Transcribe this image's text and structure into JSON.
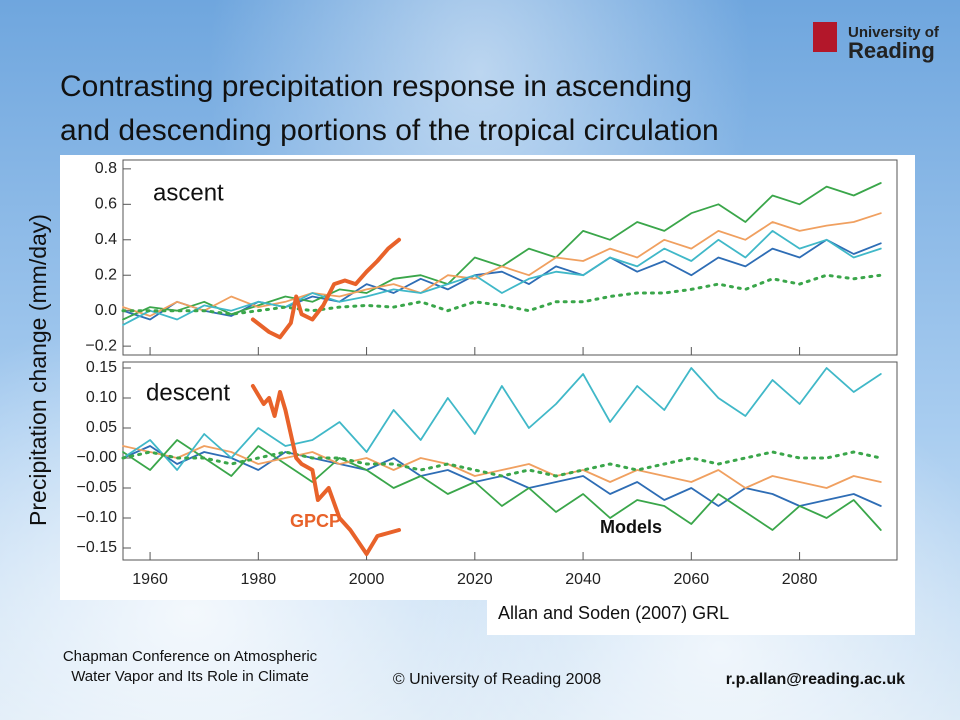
{
  "header": {
    "logo": [
      "University of",
      "Reading"
    ],
    "title": [
      "Contrasting precipitation response in ascending",
      "and descending portions of the tropical circulation"
    ]
  },
  "y_axis_label": "Precipitation change (mm/day)",
  "annotations": {
    "gpcp": "GPCP",
    "models": "Models"
  },
  "citation": "Allan and Soden (2007) GRL",
  "footer": {
    "conference": [
      "Chapman Conference on Atmospheric",
      "Water Vapor and Its Role in Climate"
    ],
    "copyright": "© University of Reading 2008",
    "email": "r.p.allan@reading.ac.uk"
  },
  "chart_data": [
    {
      "type": "line",
      "label": "ascent",
      "xlim": [
        1955,
        2098
      ],
      "xticks": [
        1960,
        1980,
        2000,
        2020,
        2040,
        2060,
        2080
      ],
      "ylim": [
        -0.25,
        0.85
      ],
      "yticks": [
        {
          "value": -0.2,
          "label": "−0.2"
        },
        {
          "value": 0,
          "label": "0.0"
        },
        {
          "value": 0.2,
          "label": "0.2"
        },
        {
          "value": 0.4,
          "label": "0.4"
        },
        {
          "value": 0.6,
          "label": "0.6"
        },
        {
          "value": 0.8,
          "label": "0.8"
        }
      ],
      "series": [
        {
          "color": "#2e6db5",
          "x": [
            1955,
            1960,
            1965,
            1970,
            1975,
            1980,
            1985,
            1990,
            1995,
            2000,
            2005,
            2010,
            2015,
            2020,
            2025,
            2030,
            2035,
            2040,
            2045,
            2050,
            2055,
            2060,
            2065,
            2070,
            2075,
            2080,
            2085,
            2090,
            2095
          ],
          "values": [
            0,
            -0.05,
            0.05,
            0,
            -0.03,
            0.05,
            0.02,
            0.08,
            0.05,
            0.15,
            0.1,
            0.18,
            0.12,
            0.2,
            0.22,
            0.15,
            0.25,
            0.2,
            0.3,
            0.22,
            0.28,
            0.2,
            0.3,
            0.25,
            0.35,
            0.3,
            0.4,
            0.32,
            0.38
          ]
        },
        {
          "color": "#3aa64a",
          "x": [
            1955,
            1960,
            1965,
            1970,
            1975,
            1980,
            1985,
            1990,
            1995,
            2000,
            2005,
            2010,
            2015,
            2020,
            2025,
            2030,
            2035,
            2040,
            2045,
            2050,
            2055,
            2060,
            2065,
            2070,
            2075,
            2080,
            2085,
            2090,
            2095
          ],
          "values": [
            -0.05,
            0.02,
            0,
            0.05,
            -0.02,
            0.03,
            0.08,
            0.05,
            0.12,
            0.1,
            0.18,
            0.2,
            0.15,
            0.3,
            0.25,
            0.35,
            0.3,
            0.45,
            0.4,
            0.5,
            0.45,
            0.55,
            0.6,
            0.5,
            0.65,
            0.6,
            0.7,
            0.65,
            0.72
          ]
        },
        {
          "color": "#f0a060",
          "x": [
            1955,
            1960,
            1965,
            1970,
            1975,
            1980,
            1985,
            1990,
            1995,
            2000,
            2005,
            2010,
            2015,
            2020,
            2025,
            2030,
            2035,
            2040,
            2045,
            2050,
            2055,
            2060,
            2065,
            2070,
            2075,
            2080,
            2085,
            2090,
            2095
          ],
          "values": [
            0.02,
            -0.03,
            0.05,
            0,
            0.08,
            0.02,
            0.05,
            0.1,
            0.08,
            0.12,
            0.15,
            0.1,
            0.2,
            0.18,
            0.25,
            0.2,
            0.3,
            0.28,
            0.35,
            0.3,
            0.4,
            0.35,
            0.45,
            0.4,
            0.5,
            0.45,
            0.48,
            0.5,
            0.55
          ]
        },
        {
          "color": "#40b8c8",
          "x": [
            1955,
            1960,
            1965,
            1970,
            1975,
            1980,
            1985,
            1990,
            1995,
            2000,
            2005,
            2010,
            2015,
            2020,
            2025,
            2030,
            2035,
            2040,
            2045,
            2050,
            2055,
            2060,
            2065,
            2070,
            2075,
            2080,
            2085,
            2090,
            2095
          ],
          "values": [
            -0.08,
            0,
            -0.05,
            0.03,
            0,
            0.05,
            0.02,
            0.1,
            0.05,
            0.08,
            0.12,
            0.1,
            0.15,
            0.2,
            0.1,
            0.18,
            0.22,
            0.2,
            0.3,
            0.25,
            0.35,
            0.28,
            0.4,
            0.3,
            0.45,
            0.35,
            0.4,
            0.3,
            0.35
          ]
        },
        {
          "color": "#3aa64a",
          "dotted": true,
          "x": [
            1955,
            1960,
            1965,
            1970,
            1975,
            1980,
            1985,
            1990,
            1995,
            2000,
            2005,
            2010,
            2015,
            2020,
            2025,
            2030,
            2035,
            2040,
            2045,
            2050,
            2055,
            2060,
            2065,
            2070,
            2075,
            2080,
            2085,
            2090,
            2095
          ],
          "values": [
            0,
            0,
            0,
            0,
            -0.02,
            0,
            0.02,
            0,
            0.02,
            0.03,
            0.02,
            0.05,
            0,
            0.05,
            0.03,
            0,
            0.05,
            0.05,
            0.08,
            0.1,
            0.1,
            0.12,
            0.15,
            0.12,
            0.18,
            0.15,
            0.2,
            0.18,
            0.2
          ]
        },
        {
          "color": "#e8622a",
          "thick": true,
          "x": [
            1979,
            1982,
            1984,
            1986,
            1987,
            1988,
            1990,
            1992,
            1994,
            1996,
            1998,
            2000,
            2002,
            2004,
            2006
          ],
          "values": [
            -0.05,
            -0.12,
            -0.15,
            -0.07,
            0.08,
            -0.02,
            -0.05,
            0.03,
            0.15,
            0.17,
            0.15,
            0.22,
            0.28,
            0.35,
            0.4
          ]
        }
      ]
    },
    {
      "type": "line",
      "label": "descent",
      "xlim": [
        1955,
        2098
      ],
      "xticks": [
        1960,
        1980,
        2000,
        2020,
        2040,
        2060,
        2080
      ],
      "ylim": [
        -0.17,
        0.16
      ],
      "yticks": [
        {
          "value": -0.15,
          "label": "−0.15"
        },
        {
          "value": -0.1,
          "label": "−0.10"
        },
        {
          "value": -0.05,
          "label": "−0.05"
        },
        {
          "value": 0,
          "label": "−0.00"
        },
        {
          "value": 0.05,
          "label": "0.05"
        },
        {
          "value": 0.1,
          "label": "0.10"
        },
        {
          "value": 0.15,
          "label": "0.15"
        }
      ],
      "series": [
        {
          "color": "#2e6db5",
          "x": [
            1955,
            1960,
            1965,
            1970,
            1975,
            1980,
            1985,
            1990,
            1995,
            2000,
            2005,
            2010,
            2015,
            2020,
            2025,
            2030,
            2035,
            2040,
            2045,
            2050,
            2055,
            2060,
            2065,
            2070,
            2075,
            2080,
            2085,
            2090,
            2095
          ],
          "values": [
            0,
            0.02,
            -0.01,
            0.01,
            0,
            -0.02,
            0.01,
            0,
            -0.01,
            -0.02,
            0,
            -0.03,
            -0.02,
            -0.04,
            -0.03,
            -0.05,
            -0.04,
            -0.03,
            -0.06,
            -0.04,
            -0.07,
            -0.05,
            -0.08,
            -0.05,
            -0.06,
            -0.08,
            -0.07,
            -0.06,
            -0.08
          ]
        },
        {
          "color": "#3aa64a",
          "x": [
            1955,
            1960,
            1965,
            1970,
            1975,
            1980,
            1985,
            1990,
            1995,
            2000,
            2005,
            2010,
            2015,
            2020,
            2025,
            2030,
            2035,
            2040,
            2045,
            2050,
            2055,
            2060,
            2065,
            2070,
            2075,
            2080,
            2085,
            2090,
            2095
          ],
          "values": [
            0.01,
            -0.02,
            0.03,
            0,
            -0.03,
            0.02,
            -0.01,
            -0.04,
            0,
            -0.02,
            -0.05,
            -0.03,
            -0.06,
            -0.04,
            -0.08,
            -0.05,
            -0.09,
            -0.06,
            -0.1,
            -0.07,
            -0.08,
            -0.11,
            -0.06,
            -0.09,
            -0.12,
            -0.08,
            -0.1,
            -0.07,
            -0.12
          ]
        },
        {
          "color": "#f0a060",
          "x": [
            1955,
            1960,
            1965,
            1970,
            1975,
            1980,
            1985,
            1990,
            1995,
            2000,
            2005,
            2010,
            2015,
            2020,
            2025,
            2030,
            2035,
            2040,
            2045,
            2050,
            2055,
            2060,
            2065,
            2070,
            2075,
            2080,
            2085,
            2090,
            2095
          ],
          "values": [
            0.02,
            0.01,
            0,
            0.02,
            0.01,
            -0.01,
            0,
            0.01,
            -0.01,
            0,
            -0.02,
            0,
            -0.01,
            -0.03,
            -0.02,
            -0.01,
            -0.03,
            -0.02,
            -0.04,
            -0.02,
            -0.03,
            -0.04,
            -0.02,
            -0.05,
            -0.03,
            -0.04,
            -0.05,
            -0.03,
            -0.04
          ]
        },
        {
          "color": "#40b8c8",
          "x": [
            1955,
            1960,
            1965,
            1970,
            1975,
            1980,
            1985,
            1990,
            1995,
            2000,
            2005,
            2010,
            2015,
            2020,
            2025,
            2030,
            2035,
            2040,
            2045,
            2050,
            2055,
            2060,
            2065,
            2070,
            2075,
            2080,
            2085,
            2090,
            2095
          ],
          "values": [
            0,
            0.03,
            -0.02,
            0.04,
            0,
            0.05,
            0.02,
            0.03,
            0.06,
            0.01,
            0.08,
            0.03,
            0.1,
            0.04,
            0.12,
            0.05,
            0.09,
            0.14,
            0.06,
            0.12,
            0.08,
            0.15,
            0.1,
            0.07,
            0.13,
            0.09,
            0.15,
            0.11,
            0.14
          ]
        },
        {
          "color": "#3aa64a",
          "dotted": true,
          "x": [
            1955,
            1960,
            1965,
            1970,
            1975,
            1980,
            1985,
            1990,
            1995,
            2000,
            2005,
            2010,
            2015,
            2020,
            2025,
            2030,
            2035,
            2040,
            2045,
            2050,
            2055,
            2060,
            2065,
            2070,
            2075,
            2080,
            2085,
            2090,
            2095
          ],
          "values": [
            0,
            0.01,
            0,
            0,
            -0.01,
            0,
            0.01,
            0,
            0,
            -0.01,
            -0.01,
            -0.02,
            -0.01,
            -0.02,
            -0.03,
            -0.02,
            -0.03,
            -0.02,
            -0.01,
            -0.02,
            -0.01,
            0,
            -0.01,
            0,
            0.01,
            0,
            0,
            0.01,
            0
          ]
        },
        {
          "color": "#e8622a",
          "thick": true,
          "x": [
            1979,
            1981,
            1982,
            1983,
            1984,
            1985,
            1987,
            1988,
            1990,
            1991,
            1993,
            1995,
            1997,
            2000,
            2002,
            2004,
            2006
          ],
          "values": [
            0.12,
            0.09,
            0.1,
            0.07,
            0.11,
            0.08,
            0,
            -0.01,
            -0.02,
            -0.07,
            -0.05,
            -0.1,
            -0.12,
            -0.16,
            -0.13,
            -0.125,
            -0.12
          ]
        }
      ]
    }
  ]
}
